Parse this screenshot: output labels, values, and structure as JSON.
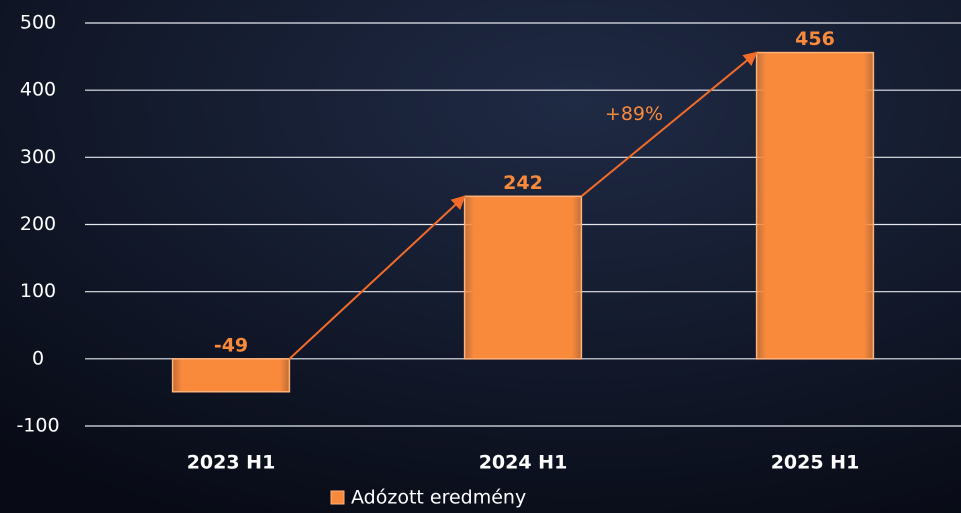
{
  "chart_data": {
    "type": "bar",
    "categories": [
      "2023 H1",
      "2024 H1",
      "2025 H1"
    ],
    "series": [
      {
        "name": "Adózott eredmény",
        "color": "#f98a3c",
        "values": [
          -49,
          242,
          456
        ]
      }
    ],
    "ylim": [
      -100,
      500
    ],
    "yticks": [
      -100,
      0,
      100,
      200,
      300,
      400,
      500
    ],
    "grid": true,
    "annotation": "+89%",
    "legend": "bottom"
  }
}
